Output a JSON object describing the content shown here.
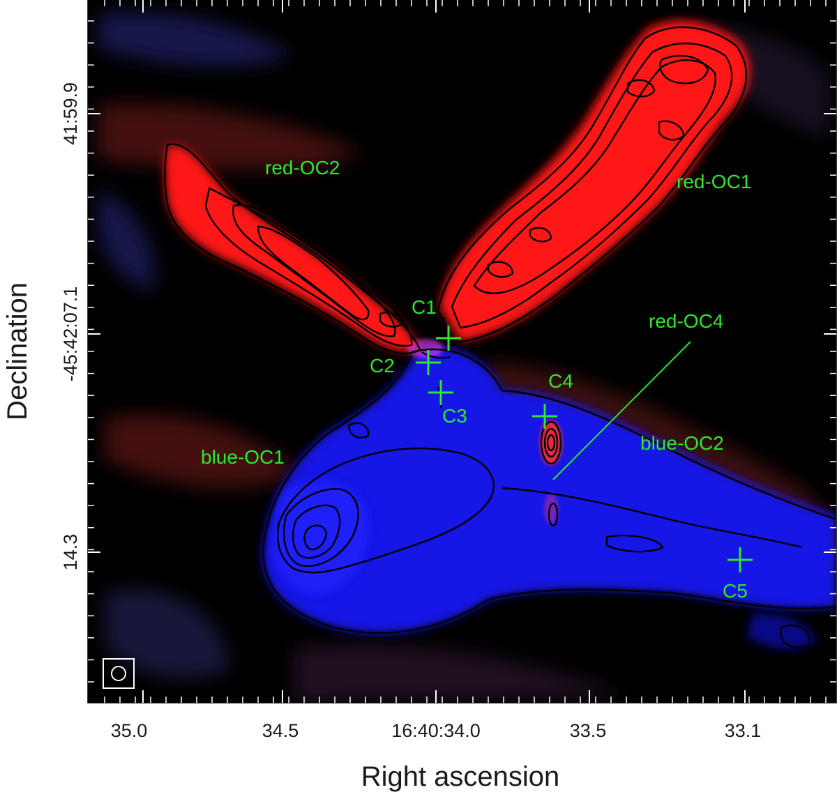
{
  "image": {
    "x_axis_title": "Right ascension",
    "y_axis_title": "Declination",
    "x_ticks": [
      {
        "label": "35.0"
      },
      {
        "label": "34.5"
      },
      {
        "label": "16:40:34.0"
      },
      {
        "label": "33.5"
      },
      {
        "label": "33.1"
      }
    ],
    "y_ticks": [
      {
        "label": "41:59.9"
      },
      {
        "label": "-45:42:07.1"
      },
      {
        "label": "14.3"
      }
    ],
    "outflow_labels": {
      "red_oc1": "red-OC1",
      "red_oc2": "red-OC2",
      "red_oc4": "red-OC4",
      "blue_oc1": "blue-OC1",
      "blue_oc2": "blue-OC2"
    },
    "source_labels": {
      "c1": "C1",
      "c2": "C2",
      "c3": "C3",
      "c4": "C4",
      "c5": "C5"
    },
    "colors": {
      "background": "#000000",
      "redshifted": "#ff1a1a",
      "blueshifted": "#1a1aff",
      "annotation": "#2ee82e",
      "contour": "#000000"
    }
  }
}
